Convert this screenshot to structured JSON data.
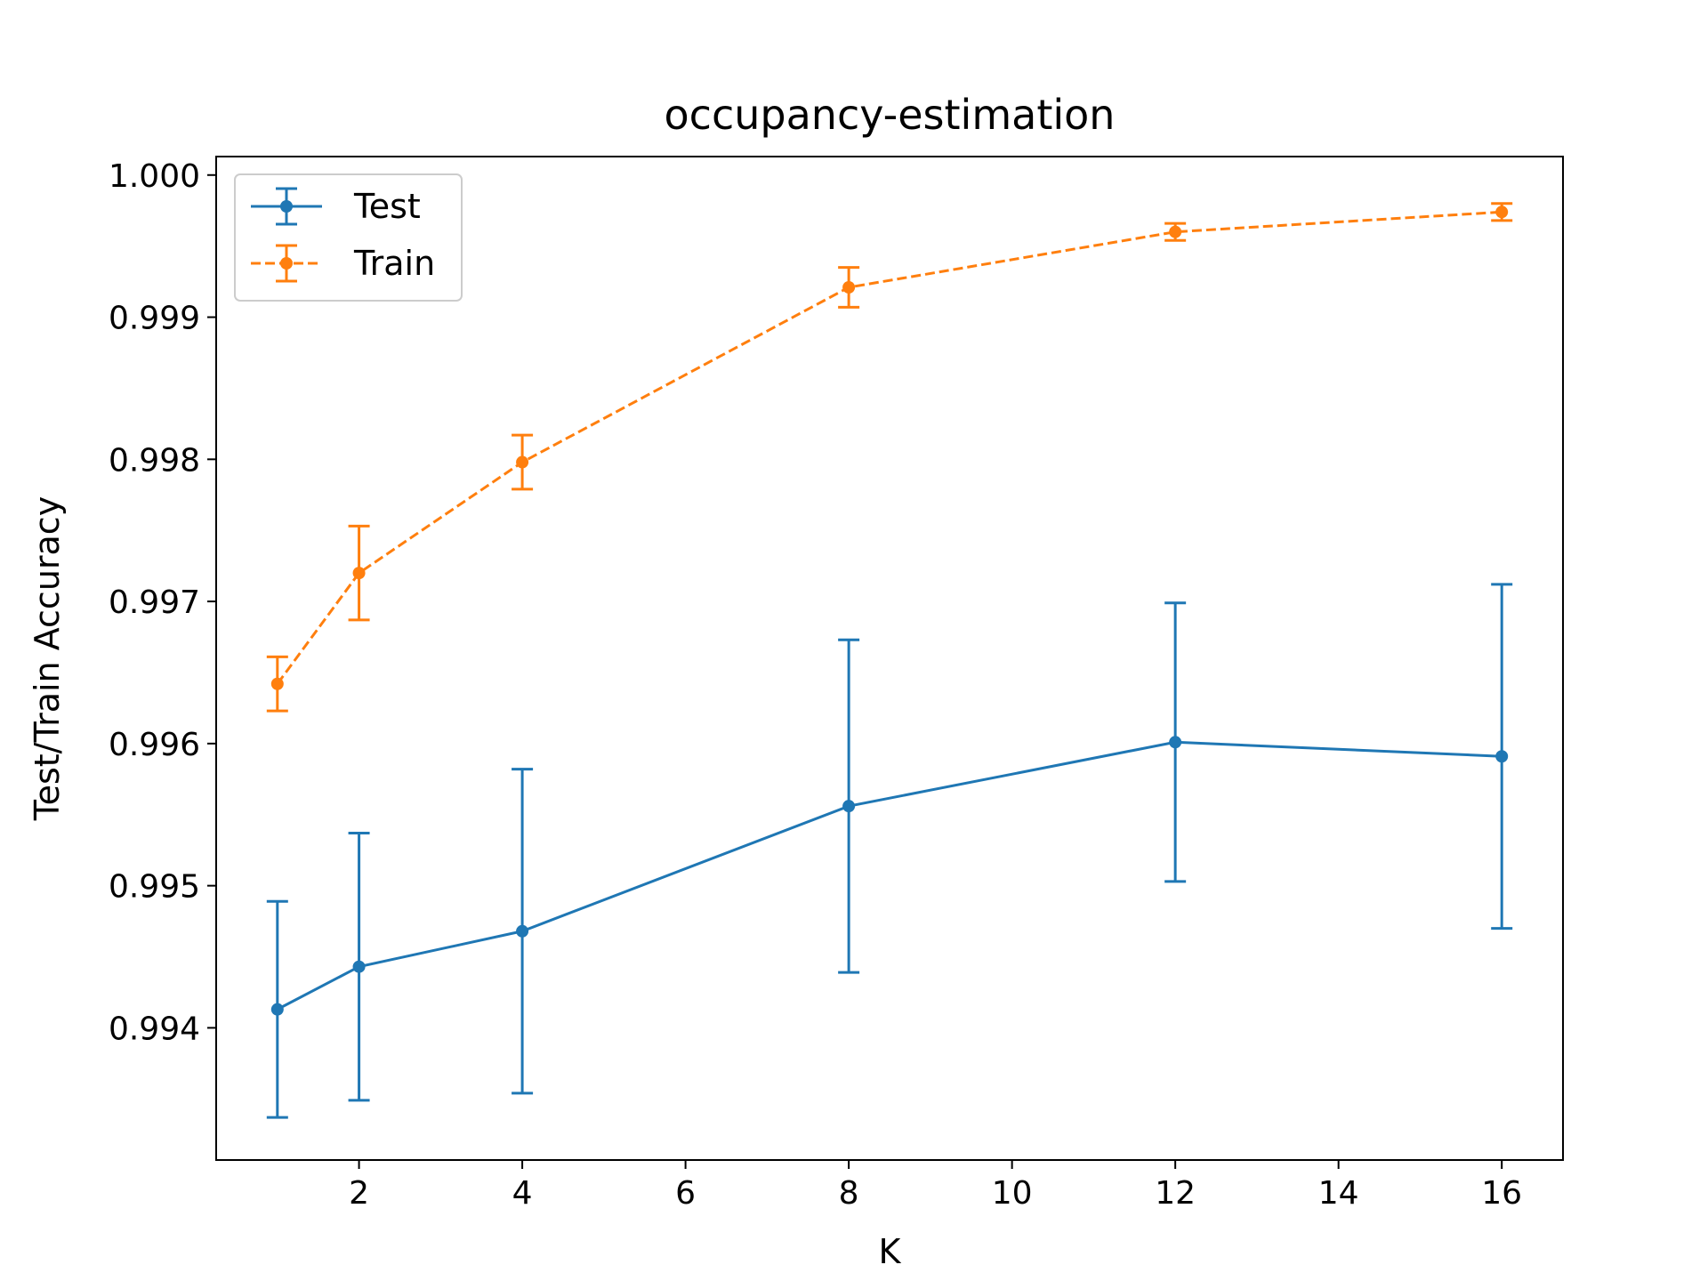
{
  "chart_data": {
    "type": "line",
    "title": "occupancy-estimation",
    "xlabel": "K",
    "ylabel": "Test/Train Accuracy",
    "xlim": [
      0.25,
      16.75
    ],
    "ylim": [
      0.99307,
      1.00013
    ],
    "xticks": [
      2,
      4,
      6,
      8,
      10,
      12,
      14,
      16
    ],
    "xtick_labels": [
      "2",
      "4",
      "6",
      "8",
      "10",
      "12",
      "14",
      "16"
    ],
    "yticks": [
      0.994,
      0.995,
      0.996,
      0.997,
      0.998,
      0.999,
      1.0
    ],
    "ytick_labels": [
      "0.994",
      "0.995",
      "0.996",
      "0.997",
      "0.998",
      "0.999",
      "1.000"
    ],
    "grid": false,
    "legend_position": "top-left",
    "series": [
      {
        "name": "Test",
        "color": "#1f77b4",
        "linestyle": "solid",
        "x": [
          1,
          2,
          4,
          8,
          12,
          16
        ],
        "y": [
          0.99413,
          0.99443,
          0.99468,
          0.99556,
          0.99601,
          0.99591
        ],
        "err": [
          0.00076,
          0.00094,
          0.00114,
          0.00117,
          0.00098,
          0.00121
        ]
      },
      {
        "name": "Train",
        "color": "#ff7f0e",
        "linestyle": "dashed",
        "x": [
          1,
          2,
          4,
          8,
          12,
          16
        ],
        "y": [
          0.99642,
          0.9972,
          0.99798,
          0.99921,
          0.9996,
          0.99974
        ],
        "err": [
          0.00019,
          0.00033,
          0.00019,
          0.00014,
          6e-05,
          6e-05
        ]
      }
    ]
  }
}
